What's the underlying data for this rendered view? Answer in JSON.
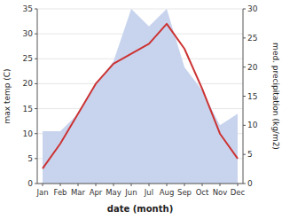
{
  "chart_data": {
    "type": "line",
    "categories": [
      "Jan",
      "Feb",
      "Mar",
      "Apr",
      "May",
      "Jun",
      "Jul",
      "Aug",
      "Sep",
      "Oct",
      "Nov",
      "Dec"
    ],
    "series": [
      {
        "type": "area",
        "axis": "y2",
        "color": "#c8d4ee",
        "values": [
          9,
          9,
          12,
          17,
          21,
          30,
          27,
          30,
          20,
          16,
          10,
          12
        ]
      },
      {
        "type": "line",
        "color": "#cc3333",
        "values": [
          3,
          8,
          14,
          20,
          24,
          26,
          28,
          32,
          27,
          19,
          10,
          5
        ]
      }
    ],
    "xlabel": "date (month)",
    "ylabel": "max temp (C)",
    "y2label": "med. precipitation (kg/m2)",
    "ylim": [
      0,
      35
    ],
    "yticks": [
      0,
      5,
      10,
      15,
      20,
      25,
      30,
      35
    ],
    "y2lim": [
      0,
      30
    ],
    "y2ticks": [
      0,
      5,
      10,
      15,
      20,
      25,
      30
    ],
    "grid": true
  }
}
